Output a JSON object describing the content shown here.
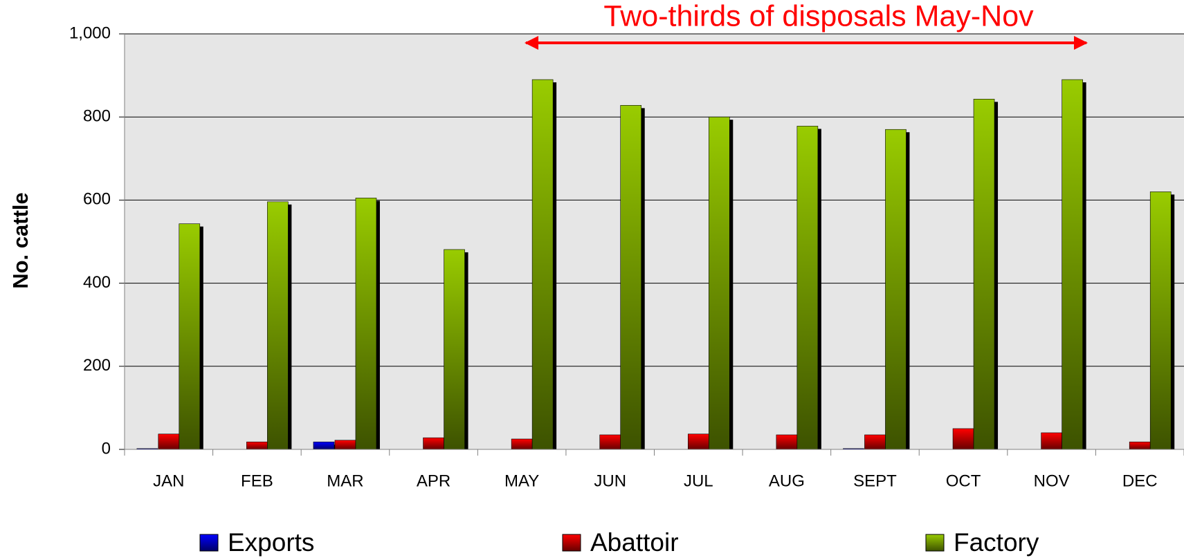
{
  "chart_data": {
    "type": "bar",
    "annotation": "Two-thirds of disposals May-Nov",
    "y_label": "No. cattle",
    "categories": [
      "JAN",
      "FEB",
      "MAR",
      "APR",
      "MAY",
      "JUN",
      "JUL",
      "AUG",
      "SEPT",
      "OCT",
      "NOV",
      "DEC"
    ],
    "series": [
      {
        "name": "Exports",
        "color": "#0000ff",
        "values": [
          2,
          0,
          18,
          0,
          0,
          0,
          0,
          0,
          2,
          0,
          0,
          0
        ]
      },
      {
        "name": "Abattoir",
        "color": "#ff0000",
        "values": [
          37,
          18,
          22,
          28,
          25,
          35,
          37,
          35,
          35,
          50,
          40,
          18
        ]
      },
      {
        "name": "Factory",
        "color": "#99cc00",
        "values": [
          543,
          596,
          605,
          481,
          890,
          828,
          800,
          778,
          770,
          843,
          890,
          620
        ]
      }
    ],
    "ylim": [
      0,
      1000
    ],
    "yticks": [
      0,
      200,
      400,
      600,
      800,
      {
        "value": 1000,
        "label": "1,000"
      }
    ],
    "grid": true
  }
}
